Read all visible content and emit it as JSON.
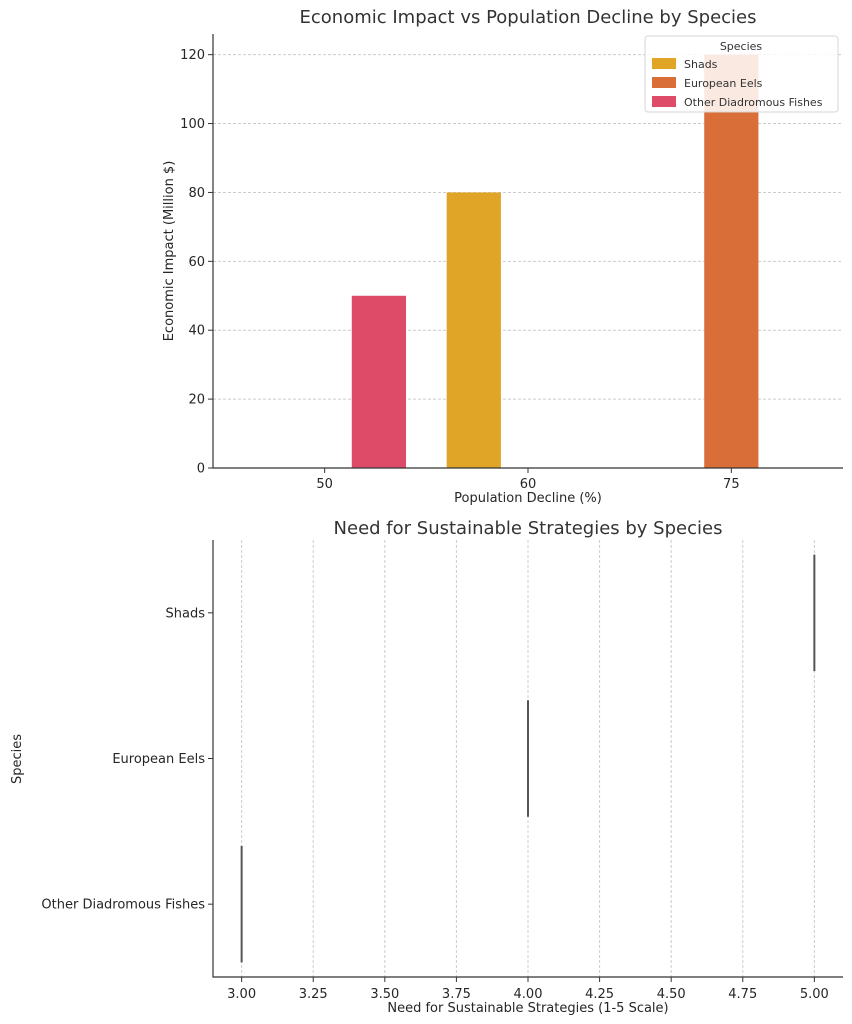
{
  "chart_data": [
    {
      "type": "bar",
      "title": "Economic Impact vs Population Decline by Species",
      "xlabel": "Population Decline (%)",
      "ylabel": "Economic Impact (Million $)",
      "categories": [
        "50",
        "60",
        "75"
      ],
      "ylim": [
        0,
        126
      ],
      "yticks": [
        0,
        20,
        40,
        60,
        80,
        100,
        120
      ],
      "grid": true,
      "legend": {
        "title": "Species",
        "placement": "top-right"
      },
      "series": [
        {
          "name": "Shads",
          "color": "#e0a526",
          "values": [
            null,
            80,
            null
          ]
        },
        {
          "name": "European Eels",
          "color": "#da6e38",
          "values": [
            null,
            null,
            120
          ]
        },
        {
          "name": "Other Diadromous Fishes",
          "color": "#dd4b68",
          "values": [
            50,
            null,
            null
          ]
        }
      ]
    },
    {
      "type": "bar",
      "orientation": "horizontal",
      "title": "Need for Sustainable Strategies by Species",
      "xlabel": "Need for Sustainable Strategies (1-5 Scale)",
      "ylabel": "Species",
      "categories": [
        "Shads",
        "European Eels",
        "Other Diadromous Fishes"
      ],
      "values": [
        5,
        4,
        3
      ],
      "xlim": [
        2.9,
        5.1
      ],
      "xticks": [
        "3.00",
        "3.25",
        "3.50",
        "3.75",
        "4.00",
        "4.25",
        "4.50",
        "4.75",
        "5.00"
      ],
      "grid": true,
      "mark_color": "#555555"
    }
  ]
}
